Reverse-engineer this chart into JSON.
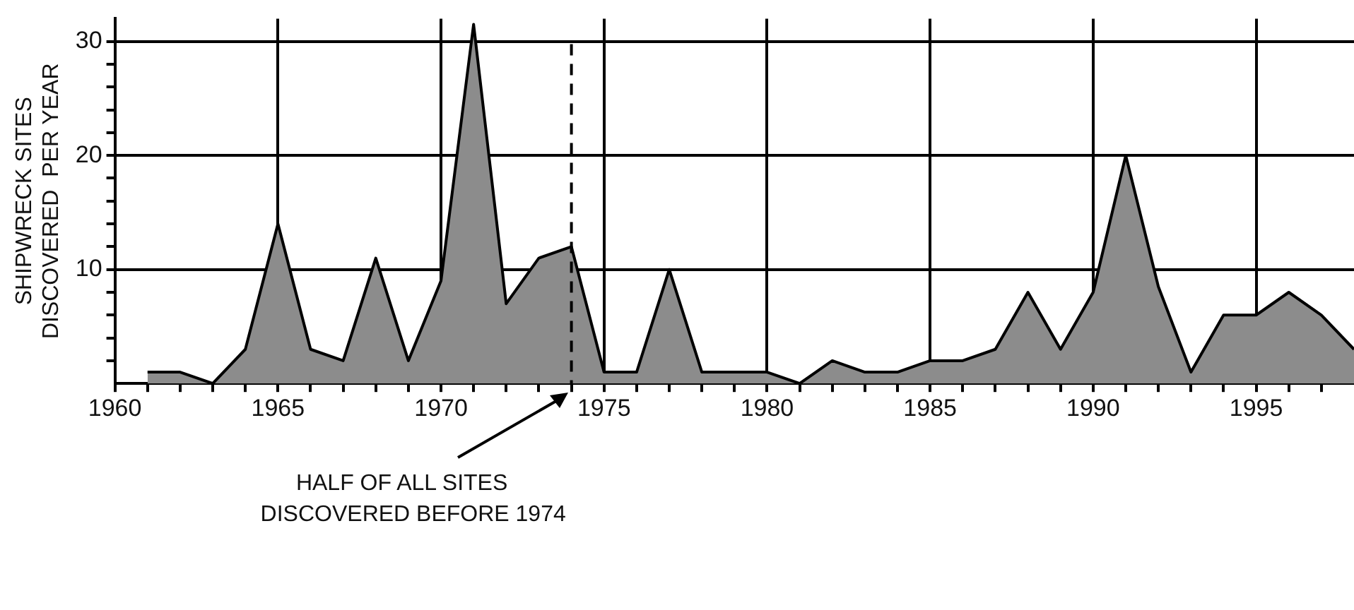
{
  "chart_data": {
    "type": "area",
    "ylabel": "SHIPWRECK SITES\nDISCOVERED  PER YEAR",
    "x": [
      1961,
      1962,
      1963,
      1964,
      1965,
      1966,
      1967,
      1968,
      1969,
      1970,
      1971,
      1972,
      1973,
      1974,
      1975,
      1976,
      1977,
      1978,
      1979,
      1980,
      1981,
      1982,
      1983,
      1984,
      1985,
      1986,
      1987,
      1988,
      1989,
      1990,
      1991,
      1992,
      1993,
      1994,
      1995,
      1996,
      1997,
      1998
    ],
    "series": [
      {
        "color": "#8c8c8c",
        "values": [
          1,
          1,
          0,
          3,
          14,
          3,
          2,
          11,
          2,
          9,
          31.5,
          7,
          11,
          12,
          1,
          1,
          10,
          1,
          1,
          1,
          0,
          2,
          1,
          1,
          2,
          2,
          3,
          8,
          3,
          8,
          20,
          8.5,
          1,
          6,
          6,
          8,
          6,
          3
        ]
      }
    ],
    "xlim": [
      1960,
      1998
    ],
    "xticks": [
      1960,
      {
        "value": 1961,
        "label": null
      },
      {
        "value": 1962,
        "label": null
      },
      {
        "value": 1963,
        "label": null
      },
      {
        "value": 1964,
        "label": null
      },
      1965,
      {
        "value": 1966,
        "label": null
      },
      {
        "value": 1967,
        "label": null
      },
      {
        "value": 1968,
        "label": null
      },
      {
        "value": 1969,
        "label": null
      },
      1970,
      {
        "value": 1971,
        "label": null
      },
      {
        "value": 1972,
        "label": null
      },
      {
        "value": 1973,
        "label": null
      },
      {
        "value": 1974,
        "label": null
      },
      1975,
      {
        "value": 1976,
        "label": null
      },
      {
        "value": 1977,
        "label": null
      },
      {
        "value": 1978,
        "label": null
      },
      {
        "value": 1979,
        "label": null
      },
      1980,
      {
        "value": 1981,
        "label": null
      },
      {
        "value": 1982,
        "label": null
      },
      {
        "value": 1983,
        "label": null
      },
      {
        "value": 1984,
        "label": null
      },
      1985,
      {
        "value": 1986,
        "label": null
      },
      {
        "value": 1987,
        "label": null
      },
      {
        "value": 1988,
        "label": null
      },
      {
        "value": 1989,
        "label": null
      },
      1990,
      {
        "value": 1991,
        "label": null
      },
      {
        "value": 1992,
        "label": null
      },
      {
        "value": 1993,
        "label": null
      },
      {
        "value": 1994,
        "label": null
      },
      1995,
      {
        "value": 1996,
        "label": null
      },
      {
        "value": 1997,
        "label": null
      }
    ],
    "ylim": [
      0,
      32
    ],
    "yticks": [
      {
        "value": 2,
        "label": null
      },
      {
        "value": 4,
        "label": null
      },
      {
        "value": 6,
        "label": null
      },
      {
        "value": 8,
        "label": null
      },
      10,
      {
        "value": 12,
        "label": null
      },
      {
        "value": 14,
        "label": null
      },
      {
        "value": 16,
        "label": null
      },
      {
        "value": 18,
        "label": null
      },
      20,
      {
        "value": 22,
        "label": null
      },
      {
        "value": 24,
        "label": null
      },
      {
        "value": 26,
        "label": null
      },
      {
        "value": 28,
        "label": null
      },
      30
    ],
    "grid": true,
    "legend": false,
    "marker": "none",
    "line_style": "solid",
    "ref_lines": [
      {
        "axis": "x",
        "value": 1974,
        "label": "HALF OF ALL SITES\nDISCOVERED BEFORE 1974",
        "line_style": "dashed",
        "color": "#000000"
      }
    ]
  }
}
